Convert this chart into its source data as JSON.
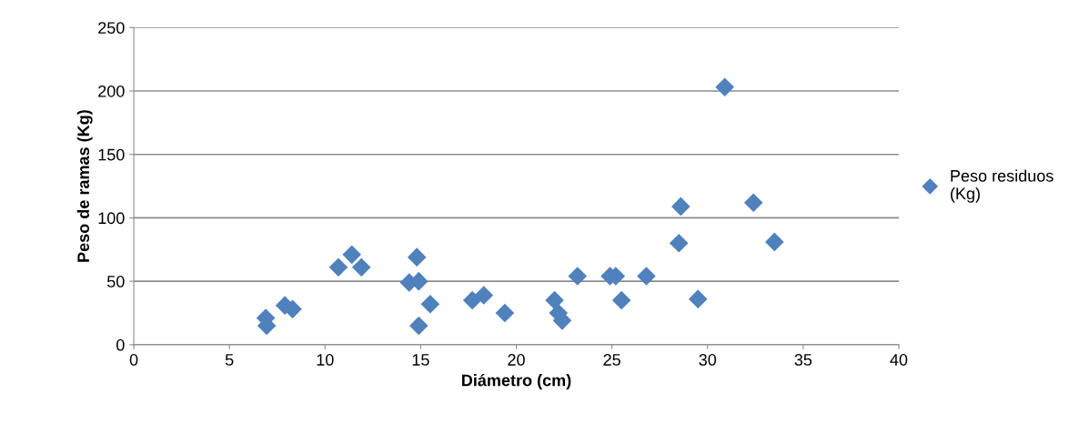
{
  "chart_data": {
    "type": "scatter",
    "xlabel": "Diámetro (cm)",
    "ylabel": "Peso de ramas (Kg)",
    "xlim": [
      0,
      40
    ],
    "xticks": [
      0,
      5,
      10,
      15,
      20,
      25,
      30,
      35,
      40
    ],
    "ylim": [
      0,
      250
    ],
    "yticks": [
      0,
      50,
      100,
      150,
      200,
      250
    ],
    "grid": "y",
    "legend": "right",
    "marker": "diamond",
    "series": [
      {
        "name": "Peso residuos (Kg)",
        "color": "#4f81bd",
        "x": [
          6.9,
          6.95,
          7.9,
          8.3,
          10.7,
          11.4,
          11.9,
          14.4,
          14.8,
          14.9,
          14.9,
          15.5,
          17.7,
          18.3,
          19.4,
          22.0,
          22.2,
          22.4,
          23.2,
          24.9,
          25.2,
          25.5,
          26.8,
          28.5,
          28.6,
          29.5,
          30.9,
          32.4,
          33.5
        ],
        "values": [
          21,
          15,
          31,
          28,
          61,
          71,
          61,
          49,
          69,
          50,
          15,
          32,
          35,
          39,
          25,
          35,
          25,
          19,
          54,
          54,
          54,
          35,
          54,
          80,
          109,
          36,
          203,
          112,
          81
        ]
      }
    ]
  }
}
